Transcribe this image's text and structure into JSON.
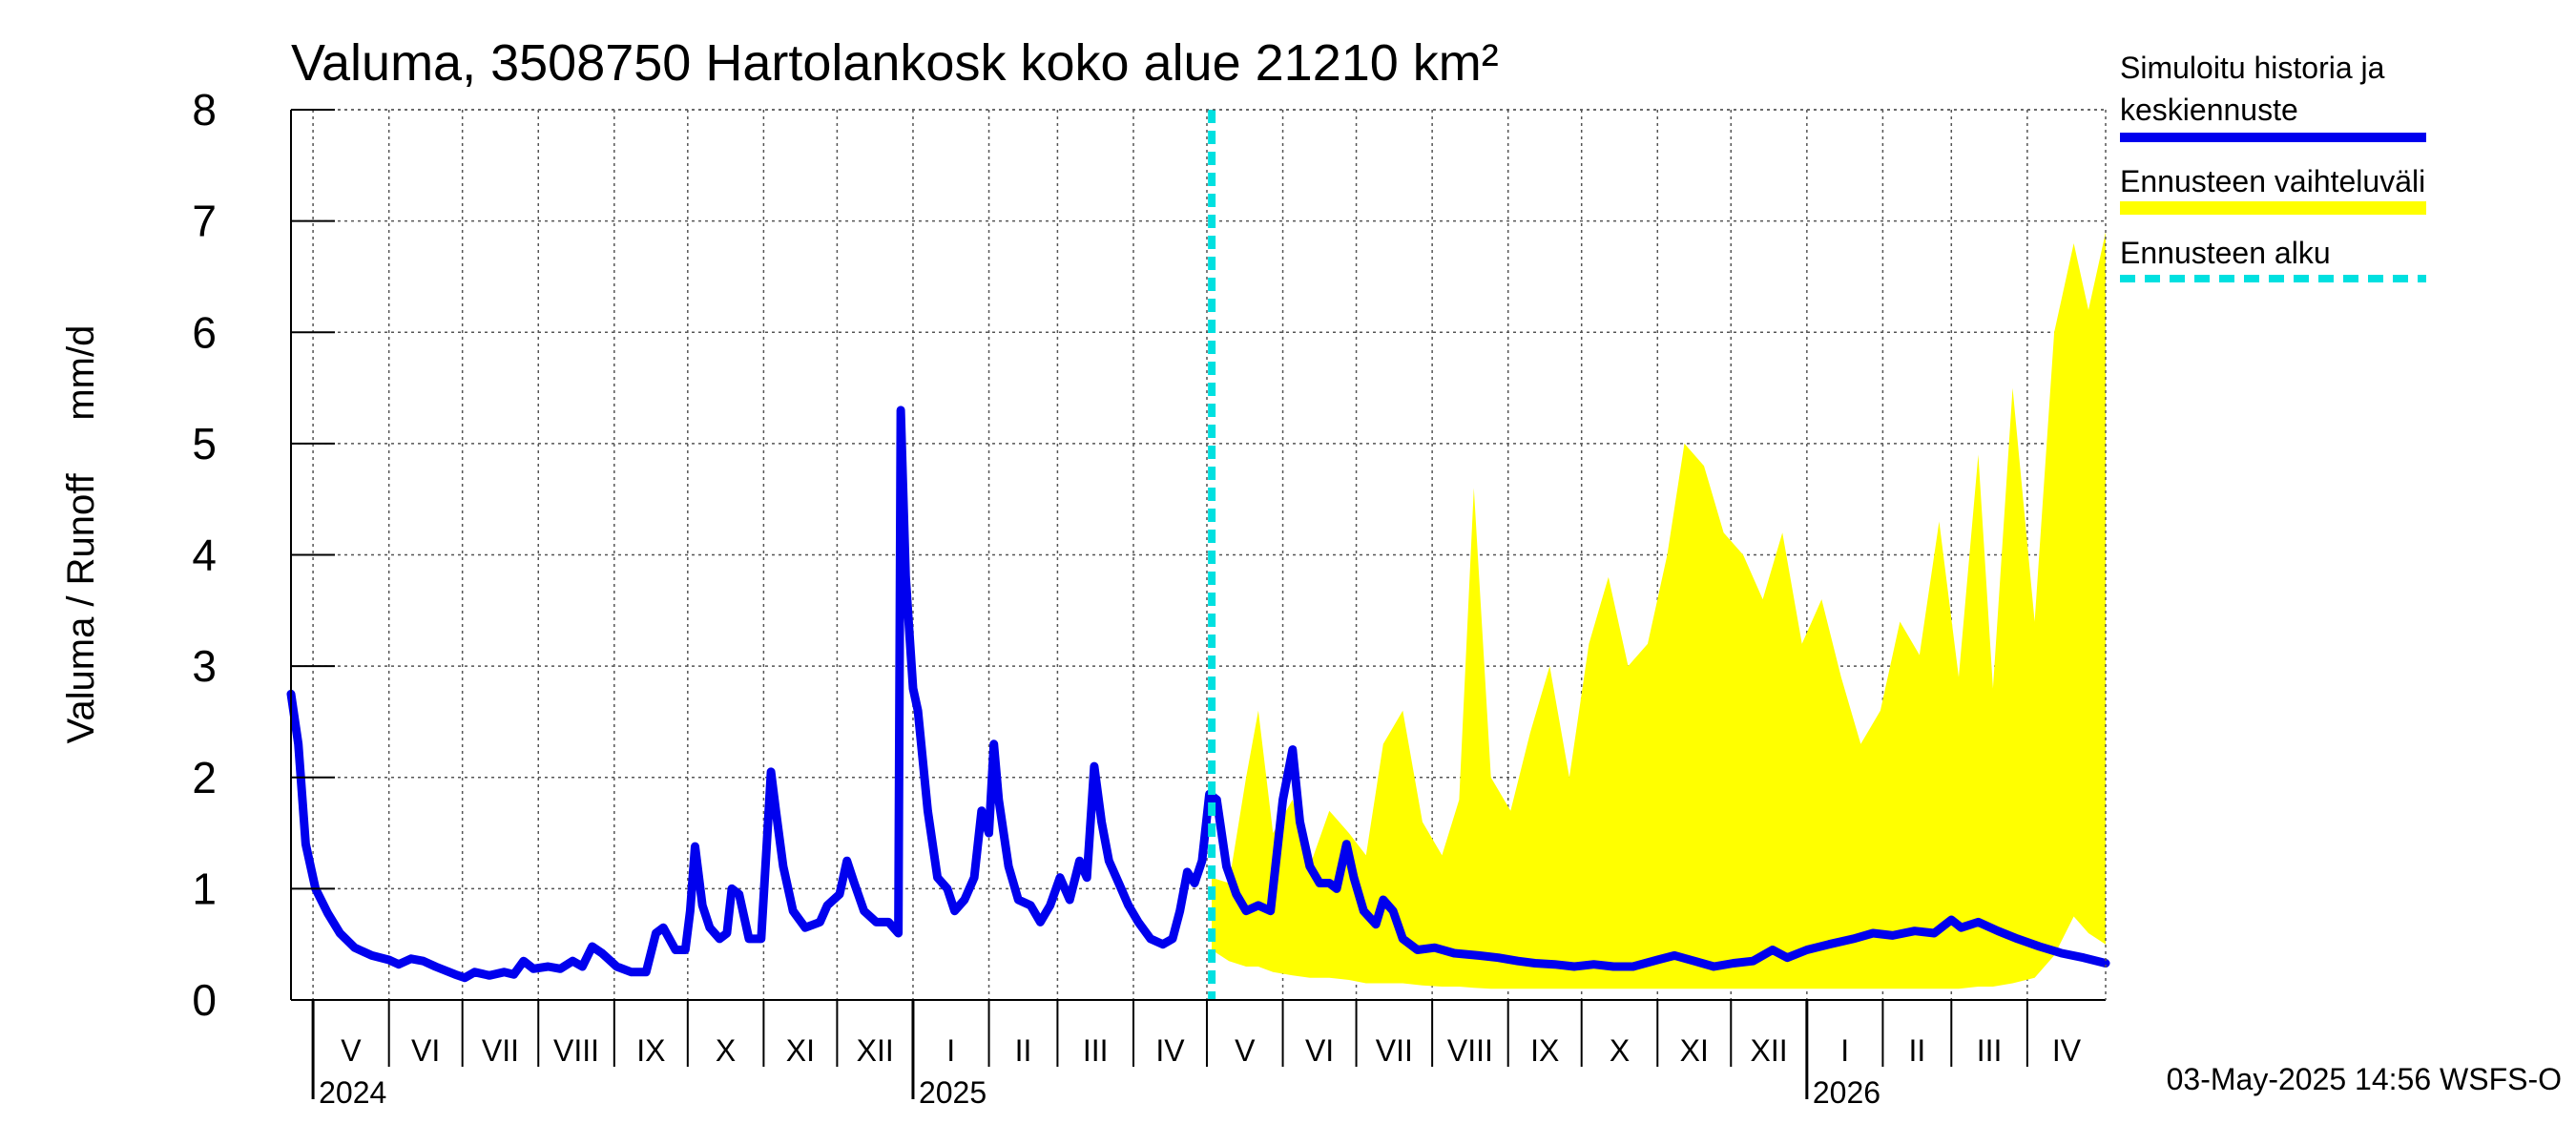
{
  "chart_data": {
    "type": "area",
    "title": "Valuma, 3508750 Hartolankosk koko alue 21210 km²",
    "ylabel": "Valuma / Runoff     mm/d",
    "xlabel": "",
    "ylim": [
      0,
      8
    ],
    "yticks": [
      0,
      1,
      2,
      3,
      4,
      5,
      6,
      7,
      8
    ],
    "x_range": [
      "2024-04-22",
      "2026-05-03"
    ],
    "grid": true,
    "legend_position": "top-right",
    "forecast_start": "2025-05-03",
    "months": [
      {
        "label": "V",
        "start": "2024-05-01"
      },
      {
        "label": "VI",
        "start": "2024-06-01"
      },
      {
        "label": "VII",
        "start": "2024-07-01"
      },
      {
        "label": "VIII",
        "start": "2024-08-01"
      },
      {
        "label": "IX",
        "start": "2024-09-01"
      },
      {
        "label": "X",
        "start": "2024-10-01"
      },
      {
        "label": "XI",
        "start": "2024-11-01"
      },
      {
        "label": "XII",
        "start": "2024-12-01"
      },
      {
        "label": "I",
        "start": "2025-01-01"
      },
      {
        "label": "II",
        "start": "2025-02-01"
      },
      {
        "label": "III",
        "start": "2025-03-01"
      },
      {
        "label": "IV",
        "start": "2025-04-01"
      },
      {
        "label": "V",
        "start": "2025-05-01"
      },
      {
        "label": "VI",
        "start": "2025-06-01"
      },
      {
        "label": "VII",
        "start": "2025-07-01"
      },
      {
        "label": "VIII",
        "start": "2025-08-01"
      },
      {
        "label": "IX",
        "start": "2025-09-01"
      },
      {
        "label": "X",
        "start": "2025-10-01"
      },
      {
        "label": "XI",
        "start": "2025-11-01"
      },
      {
        "label": "XII",
        "start": "2025-12-01"
      },
      {
        "label": "I",
        "start": "2026-01-01"
      },
      {
        "label": "II",
        "start": "2026-02-01"
      },
      {
        "label": "III",
        "start": "2026-03-01"
      },
      {
        "label": "IV",
        "start": "2026-04-01"
      }
    ],
    "years": [
      {
        "label": "2024",
        "start": "2024-05-01"
      },
      {
        "label": "2025",
        "start": "2025-01-01"
      },
      {
        "label": "2026",
        "start": "2026-01-01"
      }
    ],
    "series": [
      {
        "name": "Simuloitu historia ja keskiennuste",
        "color": "#0000ee",
        "points": [
          [
            "2024-04-22",
            2.75
          ],
          [
            "2024-04-25",
            2.3
          ],
          [
            "2024-04-28",
            1.4
          ],
          [
            "2024-05-02",
            1.0
          ],
          [
            "2024-05-07",
            0.78
          ],
          [
            "2024-05-12",
            0.6
          ],
          [
            "2024-05-18",
            0.47
          ],
          [
            "2024-05-25",
            0.4
          ],
          [
            "2024-06-01",
            0.36
          ],
          [
            "2024-06-05",
            0.32
          ],
          [
            "2024-06-10",
            0.37
          ],
          [
            "2024-06-15",
            0.35
          ],
          [
            "2024-06-20",
            0.3
          ],
          [
            "2024-06-28",
            0.23
          ],
          [
            "2024-07-02",
            0.2
          ],
          [
            "2024-07-06",
            0.25
          ],
          [
            "2024-07-12",
            0.22
          ],
          [
            "2024-07-18",
            0.25
          ],
          [
            "2024-07-22",
            0.23
          ],
          [
            "2024-07-26",
            0.35
          ],
          [
            "2024-07-30",
            0.28
          ],
          [
            "2024-08-05",
            0.3
          ],
          [
            "2024-08-10",
            0.28
          ],
          [
            "2024-08-15",
            0.35
          ],
          [
            "2024-08-19",
            0.3
          ],
          [
            "2024-08-23",
            0.48
          ],
          [
            "2024-08-27",
            0.42
          ],
          [
            "2024-09-02",
            0.3
          ],
          [
            "2024-09-08",
            0.25
          ],
          [
            "2024-09-14",
            0.25
          ],
          [
            "2024-09-18",
            0.6
          ],
          [
            "2024-09-21",
            0.65
          ],
          [
            "2024-09-26",
            0.45
          ],
          [
            "2024-09-30",
            0.45
          ],
          [
            "2024-10-02",
            0.8
          ],
          [
            "2024-10-04",
            1.38
          ],
          [
            "2024-10-07",
            0.85
          ],
          [
            "2024-10-10",
            0.65
          ],
          [
            "2024-10-14",
            0.55
          ],
          [
            "2024-10-17",
            0.6
          ],
          [
            "2024-10-19",
            1.0
          ],
          [
            "2024-10-22",
            0.95
          ],
          [
            "2024-10-26",
            0.55
          ],
          [
            "2024-10-31",
            0.55
          ],
          [
            "2024-11-02",
            1.3
          ],
          [
            "2024-11-04",
            2.05
          ],
          [
            "2024-11-06",
            1.7
          ],
          [
            "2024-11-09",
            1.2
          ],
          [
            "2024-11-13",
            0.8
          ],
          [
            "2024-11-18",
            0.65
          ],
          [
            "2024-11-24",
            0.7
          ],
          [
            "2024-11-27",
            0.85
          ],
          [
            "2024-12-02",
            0.95
          ],
          [
            "2024-12-05",
            1.25
          ],
          [
            "2024-12-08",
            1.05
          ],
          [
            "2024-12-12",
            0.8
          ],
          [
            "2024-12-17",
            0.7
          ],
          [
            "2024-12-22",
            0.7
          ],
          [
            "2024-12-26",
            0.6
          ],
          [
            "2024-12-27",
            5.3
          ],
          [
            "2024-12-29",
            3.8
          ],
          [
            "2025-01-01",
            2.8
          ],
          [
            "2025-01-03",
            2.6
          ],
          [
            "2025-01-07",
            1.7
          ],
          [
            "2025-01-11",
            1.1
          ],
          [
            "2025-01-15",
            1.0
          ],
          [
            "2025-01-18",
            0.8
          ],
          [
            "2025-01-22",
            0.9
          ],
          [
            "2025-01-26",
            1.1
          ],
          [
            "2025-01-29",
            1.7
          ],
          [
            "2025-02-01",
            1.5
          ],
          [
            "2025-02-03",
            2.3
          ],
          [
            "2025-02-05",
            1.8
          ],
          [
            "2025-02-09",
            1.2
          ],
          [
            "2025-02-13",
            0.9
          ],
          [
            "2025-02-18",
            0.85
          ],
          [
            "2025-02-22",
            0.7
          ],
          [
            "2025-02-26",
            0.85
          ],
          [
            "2025-03-02",
            1.1
          ],
          [
            "2025-03-06",
            0.9
          ],
          [
            "2025-03-10",
            1.25
          ],
          [
            "2025-03-13",
            1.1
          ],
          [
            "2025-03-16",
            2.1
          ],
          [
            "2025-03-19",
            1.6
          ],
          [
            "2025-03-22",
            1.25
          ],
          [
            "2025-03-26",
            1.05
          ],
          [
            "2025-03-30",
            0.85
          ],
          [
            "2025-04-03",
            0.7
          ],
          [
            "2025-04-08",
            0.55
          ],
          [
            "2025-04-13",
            0.5
          ],
          [
            "2025-04-17",
            0.55
          ],
          [
            "2025-04-20",
            0.8
          ],
          [
            "2025-04-23",
            1.15
          ],
          [
            "2025-04-26",
            1.05
          ],
          [
            "2025-04-29",
            1.25
          ],
          [
            "2025-05-02",
            1.85
          ],
          [
            "2025-05-05",
            1.8
          ],
          [
            "2025-05-09",
            1.2
          ],
          [
            "2025-05-13",
            0.95
          ],
          [
            "2025-05-17",
            0.8
          ],
          [
            "2025-05-22",
            0.85
          ],
          [
            "2025-05-27",
            0.8
          ],
          [
            "2025-06-01",
            1.8
          ],
          [
            "2025-06-05",
            2.25
          ],
          [
            "2025-06-08",
            1.6
          ],
          [
            "2025-06-12",
            1.2
          ],
          [
            "2025-06-16",
            1.05
          ],
          [
            "2025-06-20",
            1.05
          ],
          [
            "2025-06-23",
            1.0
          ],
          [
            "2025-06-27",
            1.4
          ],
          [
            "2025-06-30",
            1.1
          ],
          [
            "2025-07-04",
            0.8
          ],
          [
            "2025-07-09",
            0.68
          ],
          [
            "2025-07-12",
            0.9
          ],
          [
            "2025-07-16",
            0.8
          ],
          [
            "2025-07-20",
            0.55
          ],
          [
            "2025-07-26",
            0.45
          ],
          [
            "2025-08-02",
            0.47
          ],
          [
            "2025-08-10",
            0.42
          ],
          [
            "2025-08-20",
            0.4
          ],
          [
            "2025-08-28",
            0.38
          ],
          [
            "2025-09-05",
            0.35
          ],
          [
            "2025-09-12",
            0.33
          ],
          [
            "2025-09-20",
            0.32
          ],
          [
            "2025-09-28",
            0.3
          ],
          [
            "2025-10-06",
            0.32
          ],
          [
            "2025-10-14",
            0.3
          ],
          [
            "2025-10-22",
            0.3
          ],
          [
            "2025-11-01",
            0.36
          ],
          [
            "2025-11-08",
            0.4
          ],
          [
            "2025-11-16",
            0.35
          ],
          [
            "2025-11-24",
            0.3
          ],
          [
            "2025-12-02",
            0.33
          ],
          [
            "2025-12-10",
            0.35
          ],
          [
            "2025-12-18",
            0.45
          ],
          [
            "2025-12-24",
            0.38
          ],
          [
            "2026-01-01",
            0.45
          ],
          [
            "2026-01-10",
            0.5
          ],
          [
            "2026-01-20",
            0.55
          ],
          [
            "2026-01-28",
            0.6
          ],
          [
            "2026-02-05",
            0.58
          ],
          [
            "2026-02-14",
            0.62
          ],
          [
            "2026-02-22",
            0.6
          ],
          [
            "2026-03-01",
            0.72
          ],
          [
            "2026-03-05",
            0.65
          ],
          [
            "2026-03-12",
            0.7
          ],
          [
            "2026-03-20",
            0.62
          ],
          [
            "2026-03-28",
            0.55
          ],
          [
            "2026-04-06",
            0.48
          ],
          [
            "2026-04-15",
            0.42
          ],
          [
            "2026-04-24",
            0.38
          ],
          [
            "2026-05-03",
            0.33
          ]
        ]
      }
    ],
    "band": {
      "name": "Ennusteen vaihteluväli",
      "color": "#ffff00",
      "points": [
        [
          "2025-05-03",
          0.45,
          1.1
        ],
        [
          "2025-05-10",
          0.35,
          1.05
        ],
        [
          "2025-05-17",
          0.3,
          2.0
        ],
        [
          "2025-05-22",
          0.3,
          2.6
        ],
        [
          "2025-05-28",
          0.25,
          1.5
        ],
        [
          "2025-06-05",
          0.22,
          1.8
        ],
        [
          "2025-06-12",
          0.2,
          1.2
        ],
        [
          "2025-06-20",
          0.2,
          1.7
        ],
        [
          "2025-06-28",
          0.18,
          1.5
        ],
        [
          "2025-07-05",
          0.15,
          1.3
        ],
        [
          "2025-07-12",
          0.15,
          2.3
        ],
        [
          "2025-07-20",
          0.15,
          2.6
        ],
        [
          "2025-07-28",
          0.13,
          1.6
        ],
        [
          "2025-08-05",
          0.12,
          1.3
        ],
        [
          "2025-08-12",
          0.12,
          1.8
        ],
        [
          "2025-08-18",
          0.11,
          4.6
        ],
        [
          "2025-08-25",
          0.1,
          2.0
        ],
        [
          "2025-09-02",
          0.1,
          1.7
        ],
        [
          "2025-09-10",
          0.1,
          2.4
        ],
        [
          "2025-09-18",
          0.1,
          3.0
        ],
        [
          "2025-09-26",
          0.1,
          2.0
        ],
        [
          "2025-10-04",
          0.1,
          3.2
        ],
        [
          "2025-10-12",
          0.1,
          3.8
        ],
        [
          "2025-10-20",
          0.1,
          3.0
        ],
        [
          "2025-10-28",
          0.1,
          3.2
        ],
        [
          "2025-11-05",
          0.1,
          4.0
        ],
        [
          "2025-11-12",
          0.1,
          5.0
        ],
        [
          "2025-11-20",
          0.1,
          4.8
        ],
        [
          "2025-11-28",
          0.1,
          4.2
        ],
        [
          "2025-12-06",
          0.1,
          4.0
        ],
        [
          "2025-12-14",
          0.1,
          3.6
        ],
        [
          "2025-12-22",
          0.1,
          4.2
        ],
        [
          "2025-12-30",
          0.1,
          3.2
        ],
        [
          "2026-01-07",
          0.1,
          3.6
        ],
        [
          "2026-01-15",
          0.1,
          2.9
        ],
        [
          "2026-01-23",
          0.1,
          2.3
        ],
        [
          "2026-01-31",
          0.1,
          2.6
        ],
        [
          "2026-02-08",
          0.1,
          3.4
        ],
        [
          "2026-02-16",
          0.1,
          3.1
        ],
        [
          "2026-02-24",
          0.1,
          4.3
        ],
        [
          "2026-03-04",
          0.1,
          2.9
        ],
        [
          "2026-03-12",
          0.12,
          4.9
        ],
        [
          "2026-03-18",
          0.12,
          2.8
        ],
        [
          "2026-03-26",
          0.15,
          5.5
        ],
        [
          "2026-04-04",
          0.2,
          3.4
        ],
        [
          "2026-04-12",
          0.4,
          6.0
        ],
        [
          "2026-04-20",
          0.75,
          6.8
        ],
        [
          "2026-04-26",
          0.6,
          6.2
        ],
        [
          "2026-05-03",
          0.5,
          6.9
        ]
      ]
    },
    "forecast_line": {
      "name": "Ennusteen alku",
      "color": "#00e0e0"
    },
    "footer": "03-May-2025 14:56 WSFS-O"
  }
}
